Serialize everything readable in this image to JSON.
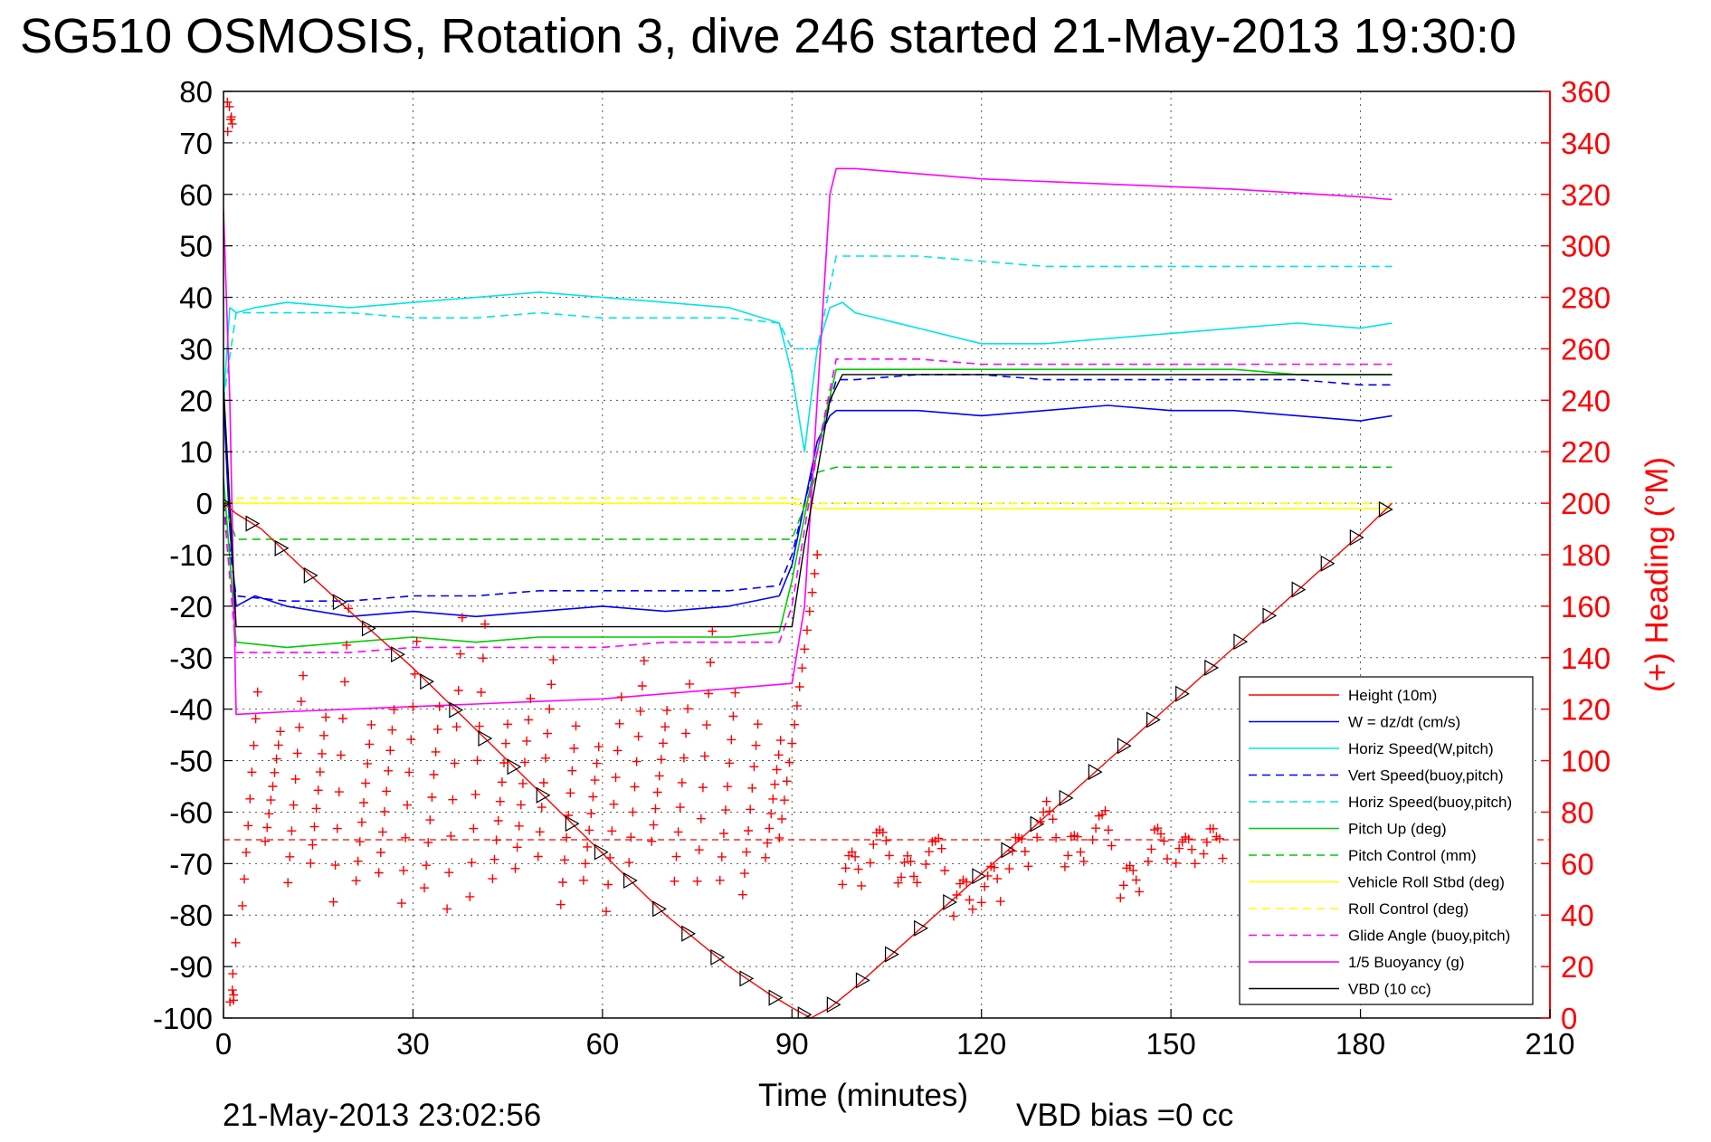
{
  "chart_data": {
    "type": "line",
    "title": "SG510 OSMOSIS, Rotation 3, dive 246 started 21-May-2013 19:30:0",
    "xlabel": "Time (minutes)",
    "ylabel_right": "(+) Heading (°M)",
    "xlim": [
      0,
      210
    ],
    "ylim": [
      -100,
      80
    ],
    "ylim_right": [
      0,
      360
    ],
    "x_ticks": [
      "0",
      "30",
      "60",
      "90",
      "120",
      "150",
      "180",
      "210"
    ],
    "y_ticks": [
      "80",
      "70",
      "60",
      "50",
      "40",
      "30",
      "20",
      "10",
      "0",
      "-10",
      "-20",
      "-30",
      "-40",
      "-50",
      "-60",
      "-70",
      "-80",
      "-90",
      "-100"
    ],
    "y_right_ticks": [
      "360",
      "340",
      "320",
      "300",
      "280",
      "260",
      "240",
      "220",
      "200",
      "180",
      "160",
      "140",
      "120",
      "100",
      "80",
      "60",
      "40",
      "20",
      "0"
    ],
    "grid": true,
    "legend_position": "bottom-right",
    "footer_left": "21-May-2013 23:02:56",
    "footer_right": "VBD bias =0 cc",
    "series": [
      {
        "name": "Height (10m)",
        "color": "#ff0000",
        "style": "solid",
        "x": [
          0,
          2,
          6,
          12,
          20,
          30,
          40,
          50,
          60,
          70,
          80,
          86,
          90,
          93,
          96,
          100,
          110,
          120,
          130,
          140,
          150,
          160,
          170,
          180,
          185
        ],
        "y": [
          0,
          -2,
          -5,
          -12,
          -21,
          -32,
          -44,
          -56,
          -68,
          -80,
          -90,
          -95,
          -98,
          -100,
          -98,
          -94,
          -83,
          -72,
          -61,
          -50,
          -39,
          -28,
          -17,
          -6,
          0
        ]
      },
      {
        "name": "W = dz/dt (cm/s)",
        "color": "#0000ff",
        "style": "solid",
        "x": [
          0,
          1,
          2,
          5,
          10,
          20,
          30,
          40,
          50,
          60,
          70,
          80,
          88,
          90,
          92,
          94,
          96,
          97,
          98,
          100,
          110,
          120,
          130,
          140,
          150,
          160,
          170,
          180,
          185
        ],
        "y": [
          20,
          -5,
          -20,
          -18,
          -20,
          -22,
          -21,
          -22,
          -21,
          -20,
          -21,
          -20,
          -18,
          -12,
          0,
          12,
          17,
          18,
          18,
          18,
          18,
          17,
          18,
          19,
          18,
          18,
          17,
          16,
          17
        ]
      },
      {
        "name": "Horiz Speed(W,pitch)",
        "color": "#00e5e5",
        "style": "solid",
        "x": [
          0,
          1,
          2,
          5,
          10,
          20,
          30,
          40,
          50,
          60,
          70,
          80,
          88,
          90,
          92,
          94,
          96,
          98,
          100,
          110,
          120,
          130,
          140,
          150,
          160,
          170,
          180,
          185
        ],
        "y": [
          20,
          38,
          37,
          38,
          39,
          38,
          39,
          40,
          41,
          40,
          39,
          38,
          35,
          25,
          10,
          30,
          38,
          39,
          37,
          34,
          31,
          31,
          32,
          33,
          34,
          35,
          34,
          35
        ]
      },
      {
        "name": "Vert Speed(buoy,pitch)",
        "color": "#0000ff",
        "style": "dashed",
        "x": [
          0,
          2,
          10,
          20,
          30,
          40,
          50,
          60,
          70,
          80,
          88,
          90,
          94,
          97,
          100,
          110,
          120,
          130,
          140,
          150,
          160,
          170,
          180,
          185
        ],
        "y": [
          0,
          -18,
          -19,
          -19,
          -18,
          -18,
          -17,
          -17,
          -17,
          -17,
          -16,
          -10,
          10,
          24,
          24,
          25,
          25,
          24,
          24,
          24,
          24,
          24,
          23,
          23
        ]
      },
      {
        "name": "Horiz Speed(buoy,pitch)",
        "color": "#00e5e5",
        "style": "dashed",
        "x": [
          0,
          2,
          10,
          20,
          30,
          40,
          50,
          60,
          70,
          80,
          88,
          90,
          94,
          97,
          100,
          110,
          120,
          130,
          140,
          150,
          160,
          170,
          180,
          185
        ],
        "y": [
          20,
          37,
          37,
          37,
          36,
          36,
          37,
          36,
          36,
          36,
          35,
          30,
          30,
          48,
          48,
          48,
          47,
          46,
          46,
          46,
          46,
          46,
          46,
          46
        ]
      },
      {
        "name": "Pitch Up (deg)",
        "color": "#00cc00",
        "style": "solid",
        "x": [
          0,
          2,
          10,
          20,
          30,
          40,
          50,
          60,
          70,
          80,
          88,
          90,
          94,
          97,
          100,
          110,
          120,
          130,
          140,
          150,
          160,
          170,
          180,
          185
        ],
        "y": [
          5,
          -27,
          -28,
          -27,
          -26,
          -27,
          -26,
          -26,
          -26,
          -26,
          -25,
          -15,
          10,
          26,
          26,
          26,
          26,
          26,
          26,
          26,
          26,
          25,
          25,
          25
        ]
      },
      {
        "name": "Pitch Control (mm)",
        "color": "#00cc00",
        "style": "dashed",
        "x": [
          0,
          2,
          10,
          20,
          30,
          40,
          50,
          60,
          70,
          80,
          88,
          90,
          94,
          97,
          100,
          110,
          120,
          130,
          140,
          150,
          160,
          170,
          180,
          185
        ],
        "y": [
          0,
          -7,
          -7,
          -7,
          -7,
          -7,
          -7,
          -7,
          -7,
          -7,
          -7,
          -7,
          6,
          7,
          7,
          7,
          7,
          7,
          7,
          7,
          7,
          7,
          7,
          7
        ]
      },
      {
        "name": "Vehicle Roll Stbd (deg)",
        "color": "#ffff00",
        "style": "solid",
        "x": [
          0,
          2,
          10,
          20,
          30,
          40,
          50,
          60,
          70,
          80,
          88,
          90,
          94,
          97,
          100,
          110,
          120,
          130,
          140,
          150,
          160,
          170,
          180,
          185
        ],
        "y": [
          0,
          0,
          0,
          0,
          0,
          0,
          0,
          0,
          0,
          0,
          0,
          0,
          -1,
          -1,
          -1,
          -1,
          -1,
          -1,
          -1,
          -1,
          -1,
          -1,
          -1,
          -1
        ]
      },
      {
        "name": "Roll Control (deg)",
        "color": "#ffff00",
        "style": "dashed",
        "x": [
          0,
          2,
          10,
          20,
          30,
          40,
          50,
          60,
          70,
          80,
          88,
          90,
          94,
          97,
          100,
          110,
          120,
          130,
          140,
          150,
          160,
          170,
          180,
          185
        ],
        "y": [
          0,
          1,
          1,
          1,
          1,
          1,
          1,
          1,
          1,
          1,
          1,
          1,
          0,
          0,
          0,
          0,
          0,
          0,
          0,
          0,
          0,
          0,
          0,
          0
        ]
      },
      {
        "name": "Glide Angle (buoy,pitch)",
        "color": "#ff00ff",
        "style": "dashed",
        "x": [
          0,
          2,
          10,
          20,
          30,
          40,
          50,
          60,
          70,
          80,
          88,
          90,
          94,
          97,
          100,
          110,
          120,
          130,
          140,
          150,
          160,
          170,
          180,
          185
        ],
        "y": [
          0,
          -29,
          -29,
          -29,
          -28,
          -28,
          -28,
          -28,
          -27,
          -27,
          -27,
          -20,
          10,
          28,
          28,
          28,
          27,
          27,
          27,
          27,
          27,
          27,
          27,
          27
        ]
      },
      {
        "name": "1/5 Buoyancy (g)",
        "color": "#ff00ff",
        "style": "solid",
        "x": [
          0,
          1,
          2,
          10,
          20,
          30,
          40,
          50,
          60,
          70,
          80,
          90,
          92,
          96,
          97,
          100,
          120,
          140,
          160,
          180,
          185
        ],
        "y": [
          57,
          20,
          -41,
          -40.5,
          -40,
          -39.5,
          -39,
          -38.5,
          -38,
          -37,
          -36,
          -35,
          -20,
          60,
          65,
          65,
          63,
          62,
          61,
          59.5,
          59
        ]
      },
      {
        "name": "VBD (10 cc)",
        "color": "#000000",
        "style": "solid",
        "x": [
          0,
          1,
          2,
          20,
          40,
          60,
          80,
          90,
          92,
          96,
          98,
          100,
          120,
          150,
          180,
          185
        ],
        "y": [
          23,
          0,
          -24,
          -24,
          -24,
          -24,
          -24,
          -24,
          -8,
          20,
          25,
          25,
          25,
          25,
          25,
          25
        ]
      }
    ]
  }
}
